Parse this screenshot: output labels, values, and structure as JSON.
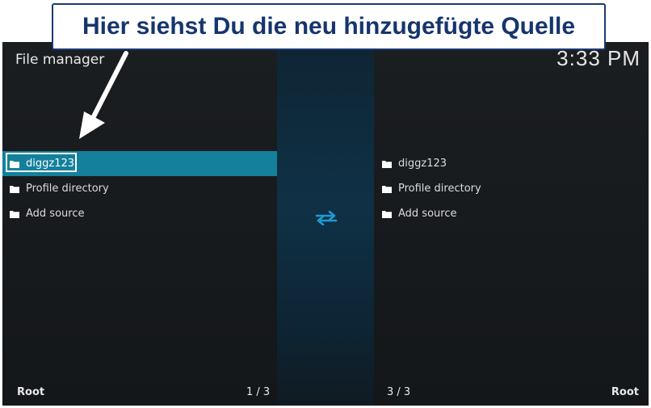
{
  "annotation": {
    "banner_text": "Hier siehst Du die neu hinzugefügte Quelle"
  },
  "header": {
    "title": "File manager",
    "clock": "3:33 PM"
  },
  "left_pane": {
    "items": [
      {
        "label": "diggz123",
        "selected": true
      },
      {
        "label": "Profile directory"
      },
      {
        "label": "Add source"
      }
    ],
    "footer_path": "Root",
    "footer_count": "1 / 3"
  },
  "right_pane": {
    "items": [
      {
        "label": "diggz123"
      },
      {
        "label": "Profile directory"
      },
      {
        "label": "Add source"
      }
    ],
    "footer_path": "Root",
    "footer_count": "3 / 3"
  },
  "icons": {
    "folder": "folder-icon",
    "swap": "swap-arrows-icon",
    "pointer": "annotation-arrow"
  },
  "colors": {
    "selection": "#14809c",
    "swap_icon": "#1e9ad0",
    "banner_text": "#16356e"
  }
}
